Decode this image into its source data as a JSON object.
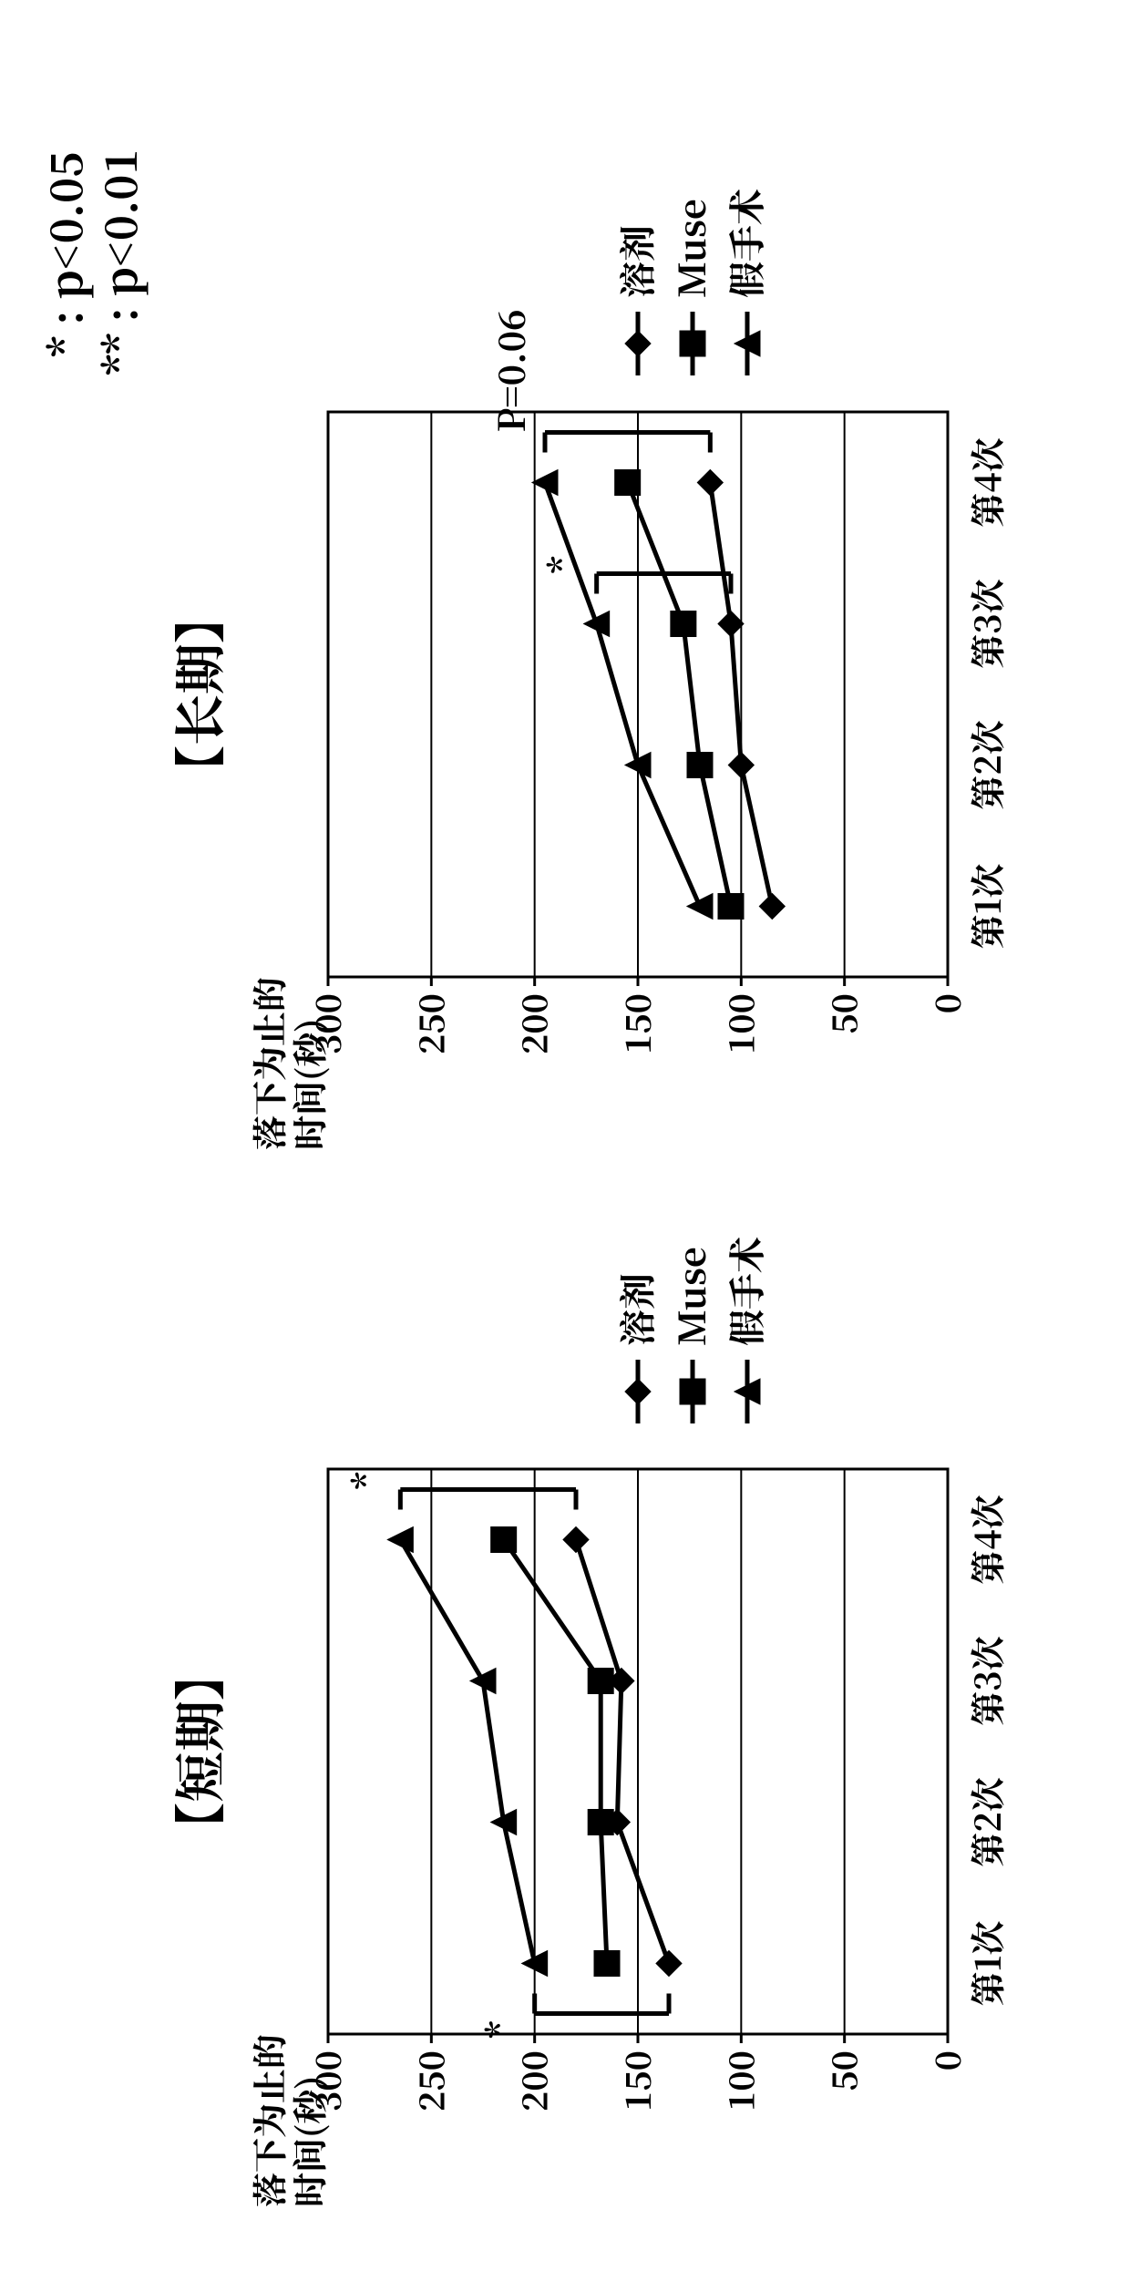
{
  "significance": {
    "single": "* : p<0.05",
    "double": "** : p<0.01"
  },
  "short": {
    "title": "【短期】",
    "ylabel1": "落下为止的",
    "ylabel2": "时间(秒)",
    "xcats": [
      "第1次",
      "第2次",
      "第3次",
      "第4次"
    ],
    "ylim": [
      0,
      300
    ],
    "yticks": [
      0,
      50,
      100,
      150,
      200,
      250,
      300
    ],
    "grid_color": "#000000",
    "axis_color": "#000000",
    "bg": "#ffffff",
    "label_fontsize_pt": 38,
    "tick_fontsize_pt": 38,
    "title_fontsize_pt": 56,
    "line_width": 5,
    "marker_size": 14,
    "series": [
      {
        "name": "溶剂",
        "marker": "diamond",
        "color": "#000000",
        "values": [
          135,
          160,
          158,
          180
        ]
      },
      {
        "name": "Muse",
        "marker": "square",
        "color": "#000000",
        "values": [
          165,
          168,
          168,
          215
        ]
      },
      {
        "name": "假手术",
        "marker": "triangle",
        "color": "#000000",
        "values": [
          200,
          215,
          225,
          265
        ]
      }
    ],
    "sig_marks": [
      {
        "label": "*",
        "between": [
          0,
          2
        ],
        "bracket_over": 0
      },
      {
        "label": "*",
        "between": [
          0,
          2
        ],
        "bracket_over": 3
      }
    ]
  },
  "long": {
    "title": "【长期】",
    "ylabel1": "落下为止的",
    "ylabel2": "时间(秒)",
    "xcats": [
      "第1次",
      "第2次",
      "第3次",
      "第4次"
    ],
    "ylim": [
      0,
      300
    ],
    "yticks": [
      0,
      50,
      100,
      150,
      200,
      250,
      300
    ],
    "grid_color": "#000000",
    "axis_color": "#000000",
    "bg": "#ffffff",
    "label_fontsize_pt": 38,
    "tick_fontsize_pt": 38,
    "title_fontsize_pt": 56,
    "line_width": 5,
    "marker_size": 14,
    "series": [
      {
        "name": "溶剂",
        "marker": "diamond",
        "color": "#000000",
        "values": [
          85,
          100,
          105,
          115
        ]
      },
      {
        "name": "Muse",
        "marker": "square",
        "color": "#000000",
        "values": [
          105,
          120,
          128,
          155
        ]
      },
      {
        "name": "假手术",
        "marker": "triangle",
        "color": "#000000",
        "values": [
          120,
          150,
          170,
          195
        ]
      }
    ],
    "sig_marks": [
      {
        "label": "*",
        "between": [
          0,
          2
        ],
        "bracket_over": 2
      },
      {
        "label": "P=0.06",
        "between": [
          0,
          2
        ],
        "bracket_over": 3
      }
    ]
  },
  "legend": [
    "溶剂",
    "Muse",
    "假手术"
  ]
}
